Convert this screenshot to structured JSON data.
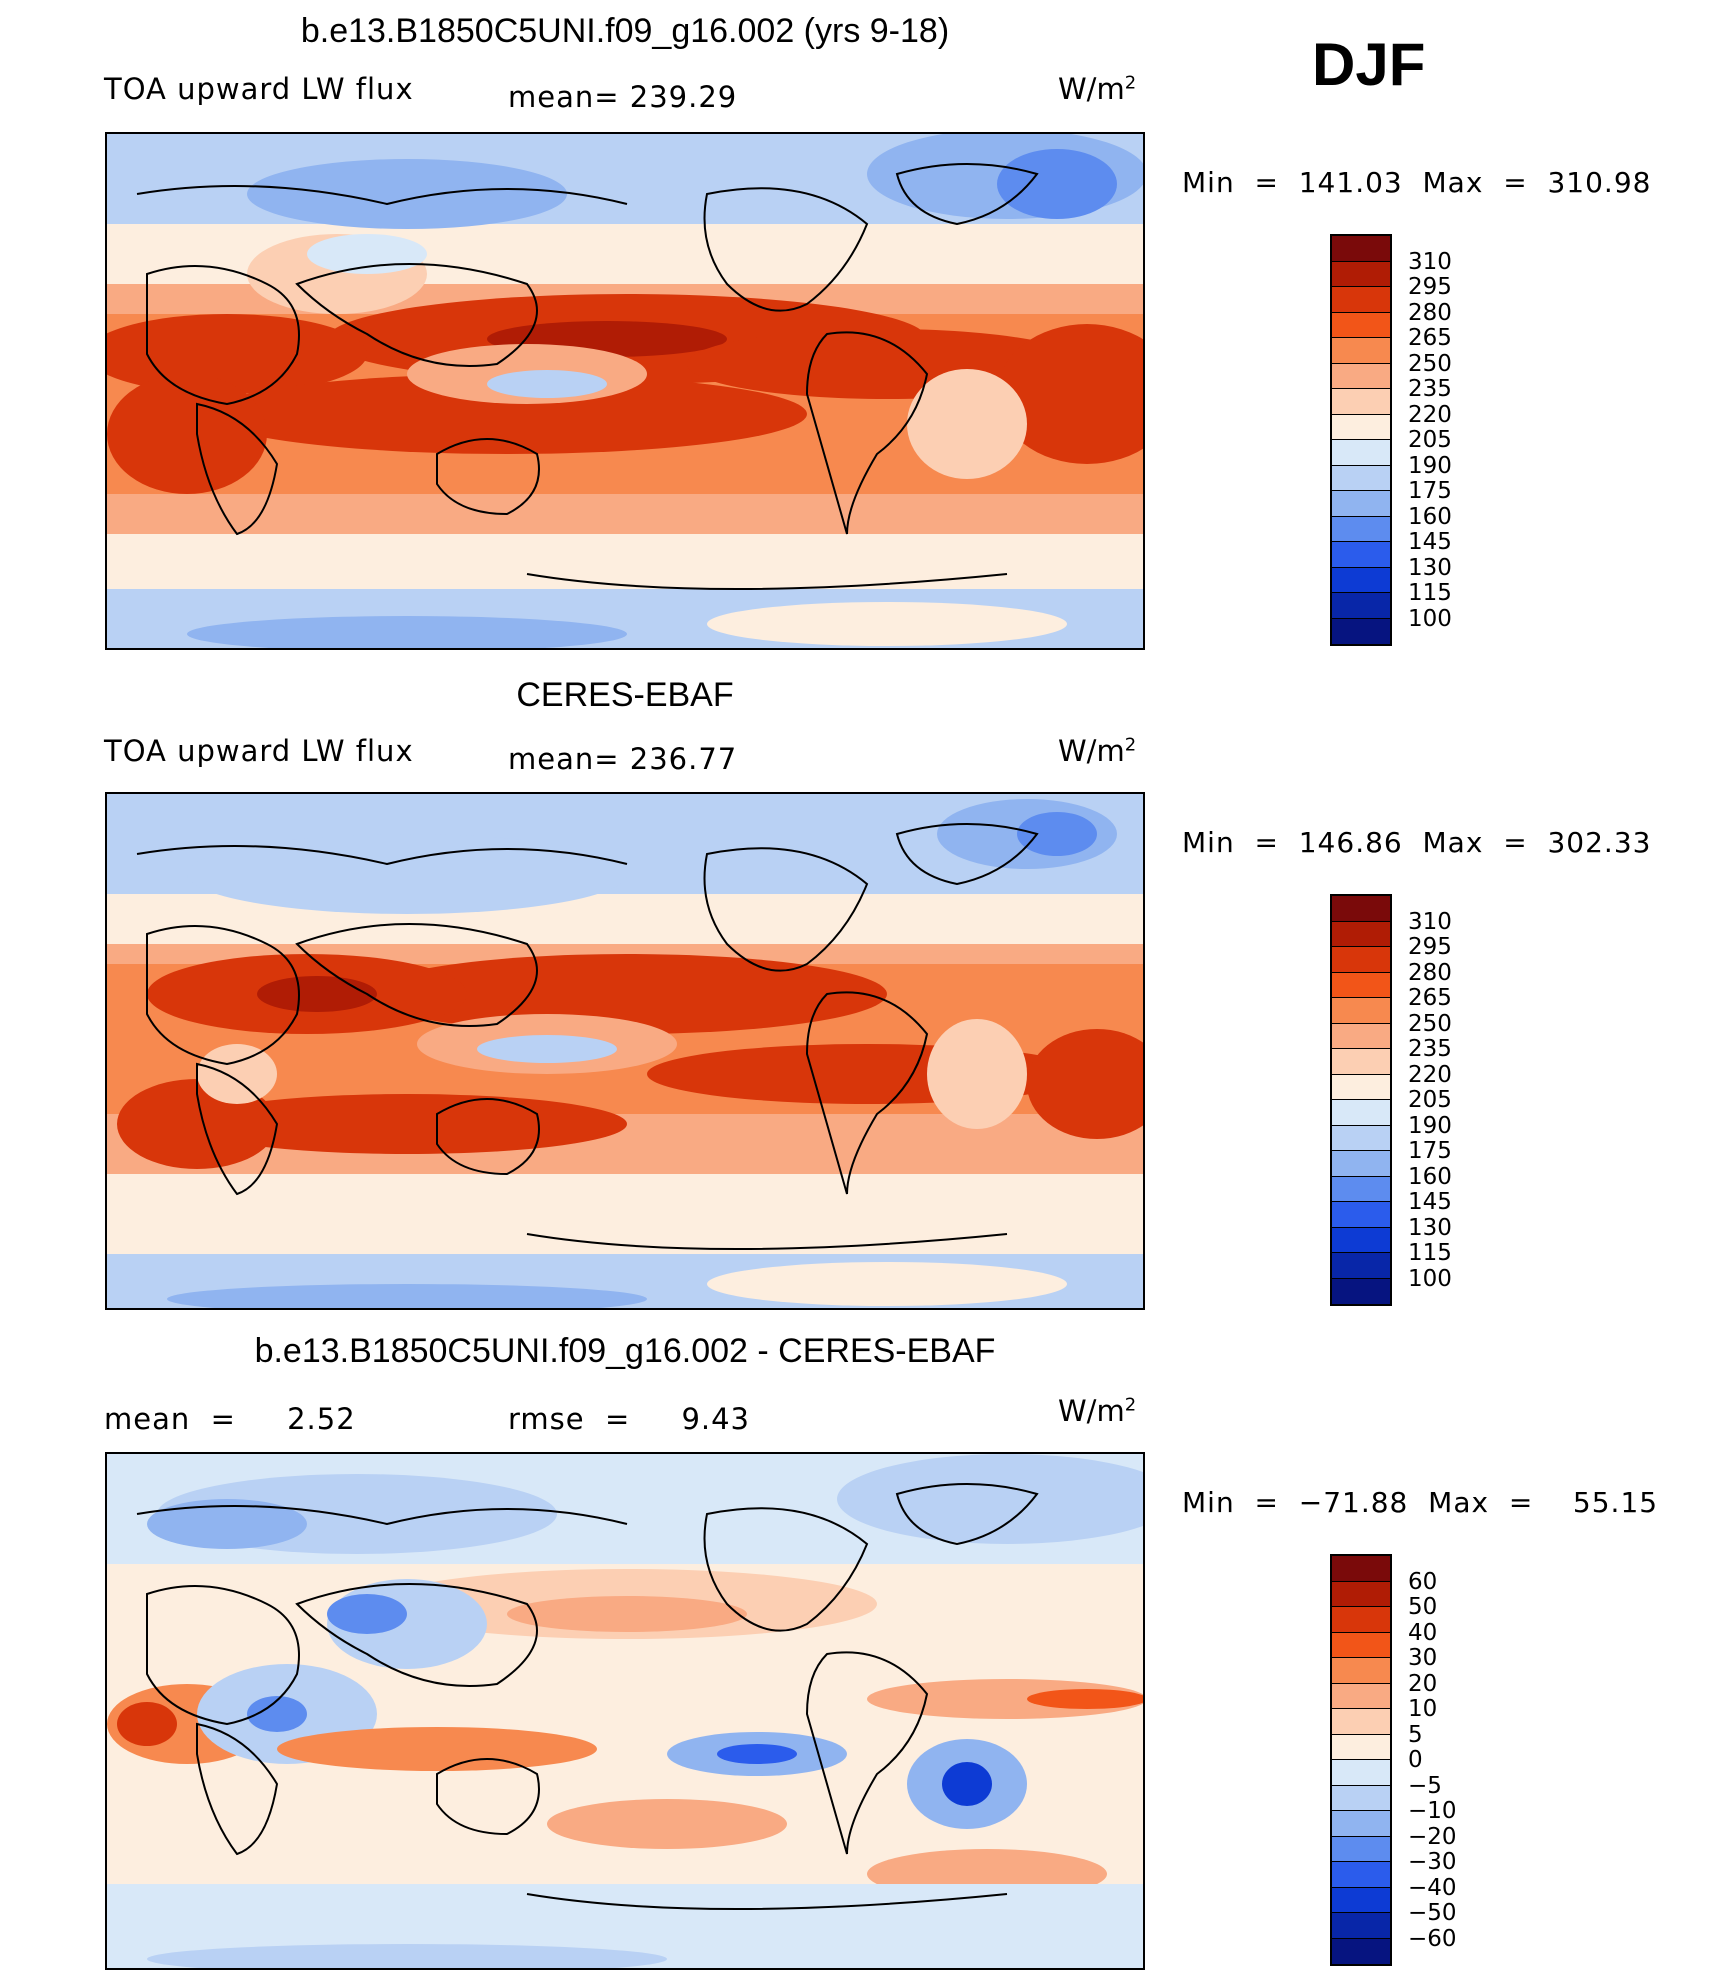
{
  "season": "DJF",
  "panels": [
    {
      "title": "b.e13.B1850C5UNI.f09_g16.002 (yrs 9-18)",
      "left_label": "TOA upward LW flux",
      "center_label": "mean= 239.29",
      "units": "W/m",
      "units_sup": "2",
      "minmax": "Min  =  141.03  Max  =  310.98",
      "colorbar_ticks": [
        "310",
        "295",
        "280",
        "265",
        "250",
        "235",
        "220",
        "205",
        "190",
        "175",
        "160",
        "145",
        "130",
        "115",
        "100"
      ],
      "colorbar_colors": [
        "#7a0a0a",
        "#b01c05",
        "#d8360a",
        "#f25518",
        "#f7894f",
        "#f9aa83",
        "#fccfb3",
        "#fdeedf",
        "#d8e8f8",
        "#b9d1f4",
        "#90b4f0",
        "#5d8cef",
        "#2b5cec",
        "#0d3bd4",
        "#0826a8",
        "#061480"
      ]
    },
    {
      "title": "CERES-EBAF",
      "left_label": "TOA upward LW flux",
      "center_label": "mean= 236.77",
      "units": "W/m",
      "units_sup": "2",
      "minmax": "Min  =  146.86  Max  =  302.33",
      "colorbar_ticks": [
        "310",
        "295",
        "280",
        "265",
        "250",
        "235",
        "220",
        "205",
        "190",
        "175",
        "160",
        "145",
        "130",
        "115",
        "100"
      ],
      "colorbar_colors": [
        "#7a0a0a",
        "#b01c05",
        "#d8360a",
        "#f25518",
        "#f7894f",
        "#f9aa83",
        "#fccfb3",
        "#fdeedf",
        "#d8e8f8",
        "#b9d1f4",
        "#90b4f0",
        "#5d8cef",
        "#2b5cec",
        "#0d3bd4",
        "#0826a8",
        "#061480"
      ]
    },
    {
      "title": "b.e13.B1850C5UNI.f09_g16.002 - CERES-EBAF",
      "left_label": "mean  =     2.52",
      "center_label": "rmse  =     9.43",
      "units": "W/m",
      "units_sup": "2",
      "minmax": "Min  =  −71.88  Max  =    55.15",
      "colorbar_ticks": [
        "60",
        "50",
        "40",
        "30",
        "20",
        "10",
        "5",
        "0",
        "−5",
        "−10",
        "−20",
        "−30",
        "−40",
        "−50",
        "−60"
      ],
      "colorbar_colors": [
        "#7a0a0a",
        "#b01c05",
        "#d8360a",
        "#f25518",
        "#f7894f",
        "#f9aa83",
        "#fccfb3",
        "#fdeedf",
        "#d8e8f8",
        "#b9d1f4",
        "#90b4f0",
        "#5d8cef",
        "#2b5cec",
        "#0d3bd4",
        "#0826a8",
        "#061480"
      ]
    }
  ]
}
